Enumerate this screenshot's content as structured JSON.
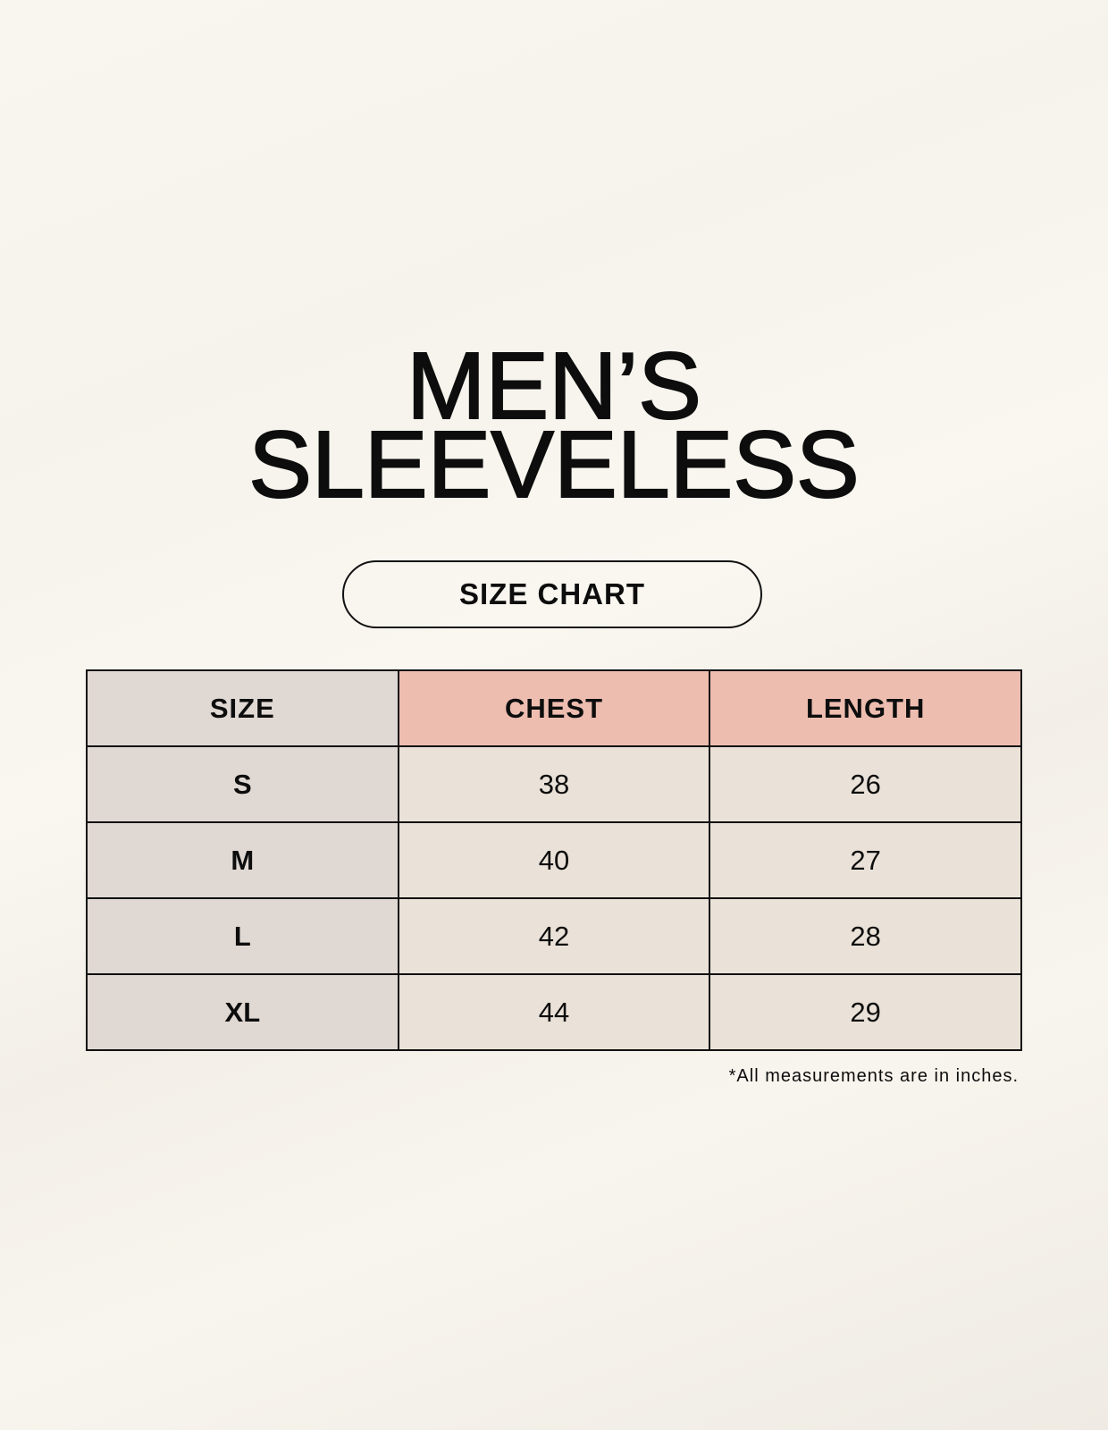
{
  "title": {
    "line1": "MEN’S",
    "line2": "SLEEVELESS"
  },
  "subtitle": "SIZE CHART",
  "table": {
    "headers": [
      "SIZE",
      "CHEST",
      "LENGTH"
    ],
    "rows": [
      [
        "S",
        "38",
        "26"
      ],
      [
        "M",
        "40",
        "27"
      ],
      [
        "L",
        "42",
        "28"
      ],
      [
        "XL",
        "44",
        "29"
      ]
    ]
  },
  "footnote": "*All measurements are in inches.",
  "colors": {
    "size_column": "#e0d8d3",
    "header": "#edbdb0",
    "body": "#eae2d8",
    "background": "#f8f5ee"
  }
}
